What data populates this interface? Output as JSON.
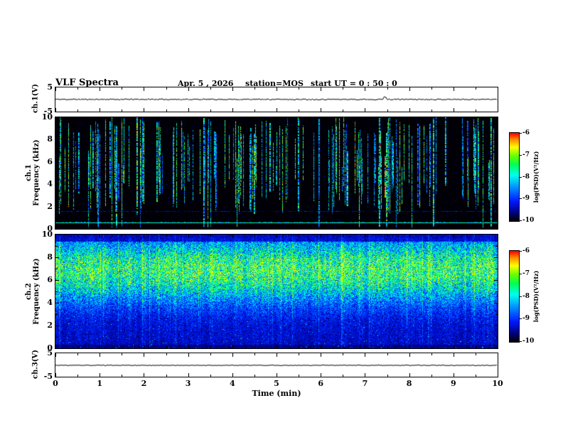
{
  "header": {
    "title": "VLF Spectra",
    "date": "Apr. 5  , 2026",
    "station": "station=MOS",
    "start_ut": "start UT  =   0 : 50 : 0"
  },
  "xaxis": {
    "label": "Time (min)",
    "min": 0,
    "max": 10,
    "major_ticks": [
      0,
      1,
      2,
      3,
      4,
      5,
      6,
      7,
      8,
      9,
      10
    ],
    "minor_step": 0.5
  },
  "panels": {
    "ch1_wave": {
      "ylabel": "ch.1(V)",
      "ymin": -5,
      "ymax": 5,
      "tick_labels": [
        "5",
        "-5"
      ]
    },
    "ch1_spec": {
      "ylabel_line1": "ch.1",
      "ylabel_line2": "Frequency (kHz)",
      "ymin": 0,
      "ymax": 10,
      "major_ticks": [
        10,
        8,
        6,
        4,
        2,
        0
      ],
      "minor_step": 1
    },
    "ch2_spec": {
      "ylabel_line1": "ch.2",
      "ylabel_line2": "Frequency (kHz)",
      "ymin": 0,
      "ymax": 10,
      "major_ticks": [
        10,
        8,
        6,
        4,
        2,
        0
      ],
      "minor_step": 1
    },
    "ch3_wave": {
      "ylabel": "ch.3(V)",
      "ymin": -5,
      "ymax": 5,
      "tick_labels": [
        "5",
        "-5"
      ]
    }
  },
  "colorbar": {
    "label": "log(PSD)(V²/Hz)",
    "ticks": [
      -6,
      -7,
      -8,
      -9,
      -10
    ],
    "zmin": -10,
    "zmax": -6,
    "gradient": [
      {
        "t": 0.0,
        "c": "#000006"
      },
      {
        "t": 0.08,
        "c": "#000070"
      },
      {
        "t": 0.22,
        "c": "#0018ff"
      },
      {
        "t": 0.38,
        "c": "#0090ff"
      },
      {
        "t": 0.52,
        "c": "#00ffee"
      },
      {
        "t": 0.64,
        "c": "#00ff55"
      },
      {
        "t": 0.74,
        "c": "#66ff00"
      },
      {
        "t": 0.84,
        "c": "#ffff00"
      },
      {
        "t": 0.93,
        "c": "#ff8800"
      },
      {
        "t": 1.0,
        "c": "#ff0000"
      }
    ]
  },
  "chart_data": [
    {
      "id": "ch1_waveform",
      "type": "line",
      "title": "ch.1 time series",
      "ylabel": "ch.1(V)",
      "xlim": [
        0,
        10
      ],
      "ylim": [
        -5,
        5
      ],
      "summary": "Nearly flat trace at ~0.2 V across 0-10 min with small fluctuations; brief small excursion near 7.4 min",
      "mean_v": 0.2,
      "noise_v": 0.25,
      "spikes": [
        {
          "x_min": 7.45,
          "v": 1.0
        }
      ]
    },
    {
      "id": "ch1_spectrogram",
      "type": "heatmap",
      "title": "ch.1 VLF spectrogram",
      "xlabel": "Time (min)",
      "ylabel": "Frequency (kHz)",
      "xlim": [
        0,
        10
      ],
      "ylim": [
        0,
        10
      ],
      "zlabel": "log(PSD)(V²/Hz)",
      "zlim": [
        -10,
        -6
      ],
      "summary": "Background at/below -10 (black). ~170 sparse broadband vertical impulses (sferics) spanning ~2-10 kHz at PSD ~ -8.6 to -7.0; persistent narrow emission line near 0.55 kHz at ~ -7.8; faint intermittent line near 1.6 kHz.",
      "background_z": -10,
      "impulse_count": 170,
      "impulse_z_range": [
        -8.6,
        -7.0
      ],
      "strong_impulses_min": [
        3.35,
        7.32,
        8.55,
        9.85
      ],
      "line_freq_khz": 0.55,
      "line_z": -7.8,
      "faint_line_freq_khz": 1.6
    },
    {
      "id": "ch2_spectrogram",
      "type": "heatmap",
      "title": "ch.2 VLF spectrogram",
      "xlabel": "Time (min)",
      "ylabel": "Frequency (kHz)",
      "xlim": [
        0,
        10
      ],
      "ylim": [
        0,
        10
      ],
      "zlabel": "log(PSD)(V²/Hz)",
      "zlim": [
        -10,
        -6
      ],
      "summary": "Dense continuous broadband noise. Strongest band ~5-9 kHz (PSD ~ -8.3 to -7.3, cyan/green) with closely spaced vertical striations; weaker mottled blue background (~ -9.6 to -8.8) below 4 kHz.",
      "band_center_khz": 6.9,
      "band_width_khz": 2.0,
      "band_peak_z": -7.4,
      "background_z_range": [
        -9.6,
        -8.8
      ]
    },
    {
      "id": "ch3_waveform",
      "type": "line",
      "title": "ch.3 time series",
      "ylabel": "ch.3(V)",
      "xlim": [
        0,
        10
      ],
      "ylim": [
        -5,
        5
      ],
      "summary": "Flat trace at ~0 V with very small fluctuations",
      "mean_v": 0.0,
      "noise_v": 0.15,
      "spikes": []
    }
  ]
}
